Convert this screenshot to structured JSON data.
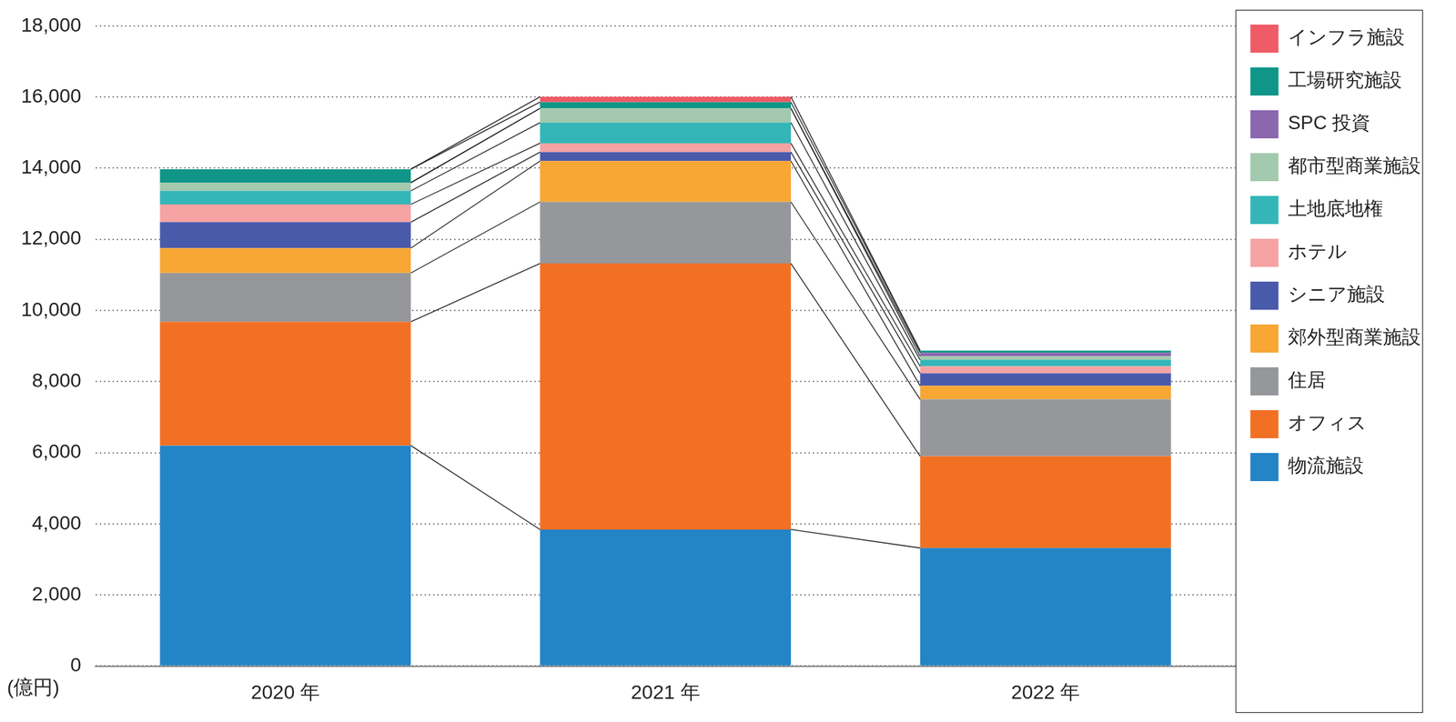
{
  "chart_data": {
    "type": "bar",
    "stacked": true,
    "categories": [
      "2020 年",
      "2021 年",
      "2022 年"
    ],
    "y_label": "(億円)",
    "ylim": [
      0,
      18000
    ],
    "yticks": [
      0,
      {
        "value": 2000,
        "label": "2,000"
      },
      {
        "value": 4000,
        "label": "4,000"
      },
      {
        "value": 6000,
        "label": "6,000"
      },
      {
        "value": 8000,
        "label": "8,000"
      },
      {
        "value": 10000,
        "label": "10,000"
      },
      {
        "value": 12000,
        "label": "12,000"
      },
      {
        "value": 14000,
        "label": "14,000"
      },
      {
        "value": 16000,
        "label": "16,000"
      },
      {
        "value": 18000,
        "label": "18,000"
      }
    ],
    "grid": true,
    "legend": "right",
    "series": [
      {
        "name": "物流施設",
        "color": "#2384c6",
        "values": [
          6200,
          3840,
          3320
        ]
      },
      {
        "name": "オフィス",
        "color": "#f27024",
        "values": [
          3480,
          7480,
          2580
        ]
      },
      {
        "name": "住居",
        "color": "#96979b",
        "values": [
          1370,
          1730,
          1600
        ]
      },
      {
        "name": "郊外型商業施設",
        "color": "#f8a634",
        "values": [
          700,
          1150,
          380
        ]
      },
      {
        "name": "シニア施設",
        "color": "#4a5aab",
        "values": [
          730,
          250,
          350
        ]
      },
      {
        "name": "ホテル",
        "color": "#f5a3a3",
        "values": [
          500,
          250,
          200
        ]
      },
      {
        "name": "土地底地権",
        "color": "#34b6b8",
        "values": [
          380,
          580,
          180
        ]
      },
      {
        "name": "都市型商業施設",
        "color": "#a3c9ae",
        "values": [
          230,
          400,
          100
        ]
      },
      {
        "name": "SPC 投資",
        "color": "#8b67b0",
        "values": [
          0,
          0,
          100
        ]
      },
      {
        "name": "工場研究施設",
        "color": "#0f9688",
        "values": [
          380,
          175,
          60
        ]
      },
      {
        "name": "インフラ施設",
        "color": "#ef5b66",
        "values": [
          0,
          150,
          0
        ]
      }
    ]
  }
}
